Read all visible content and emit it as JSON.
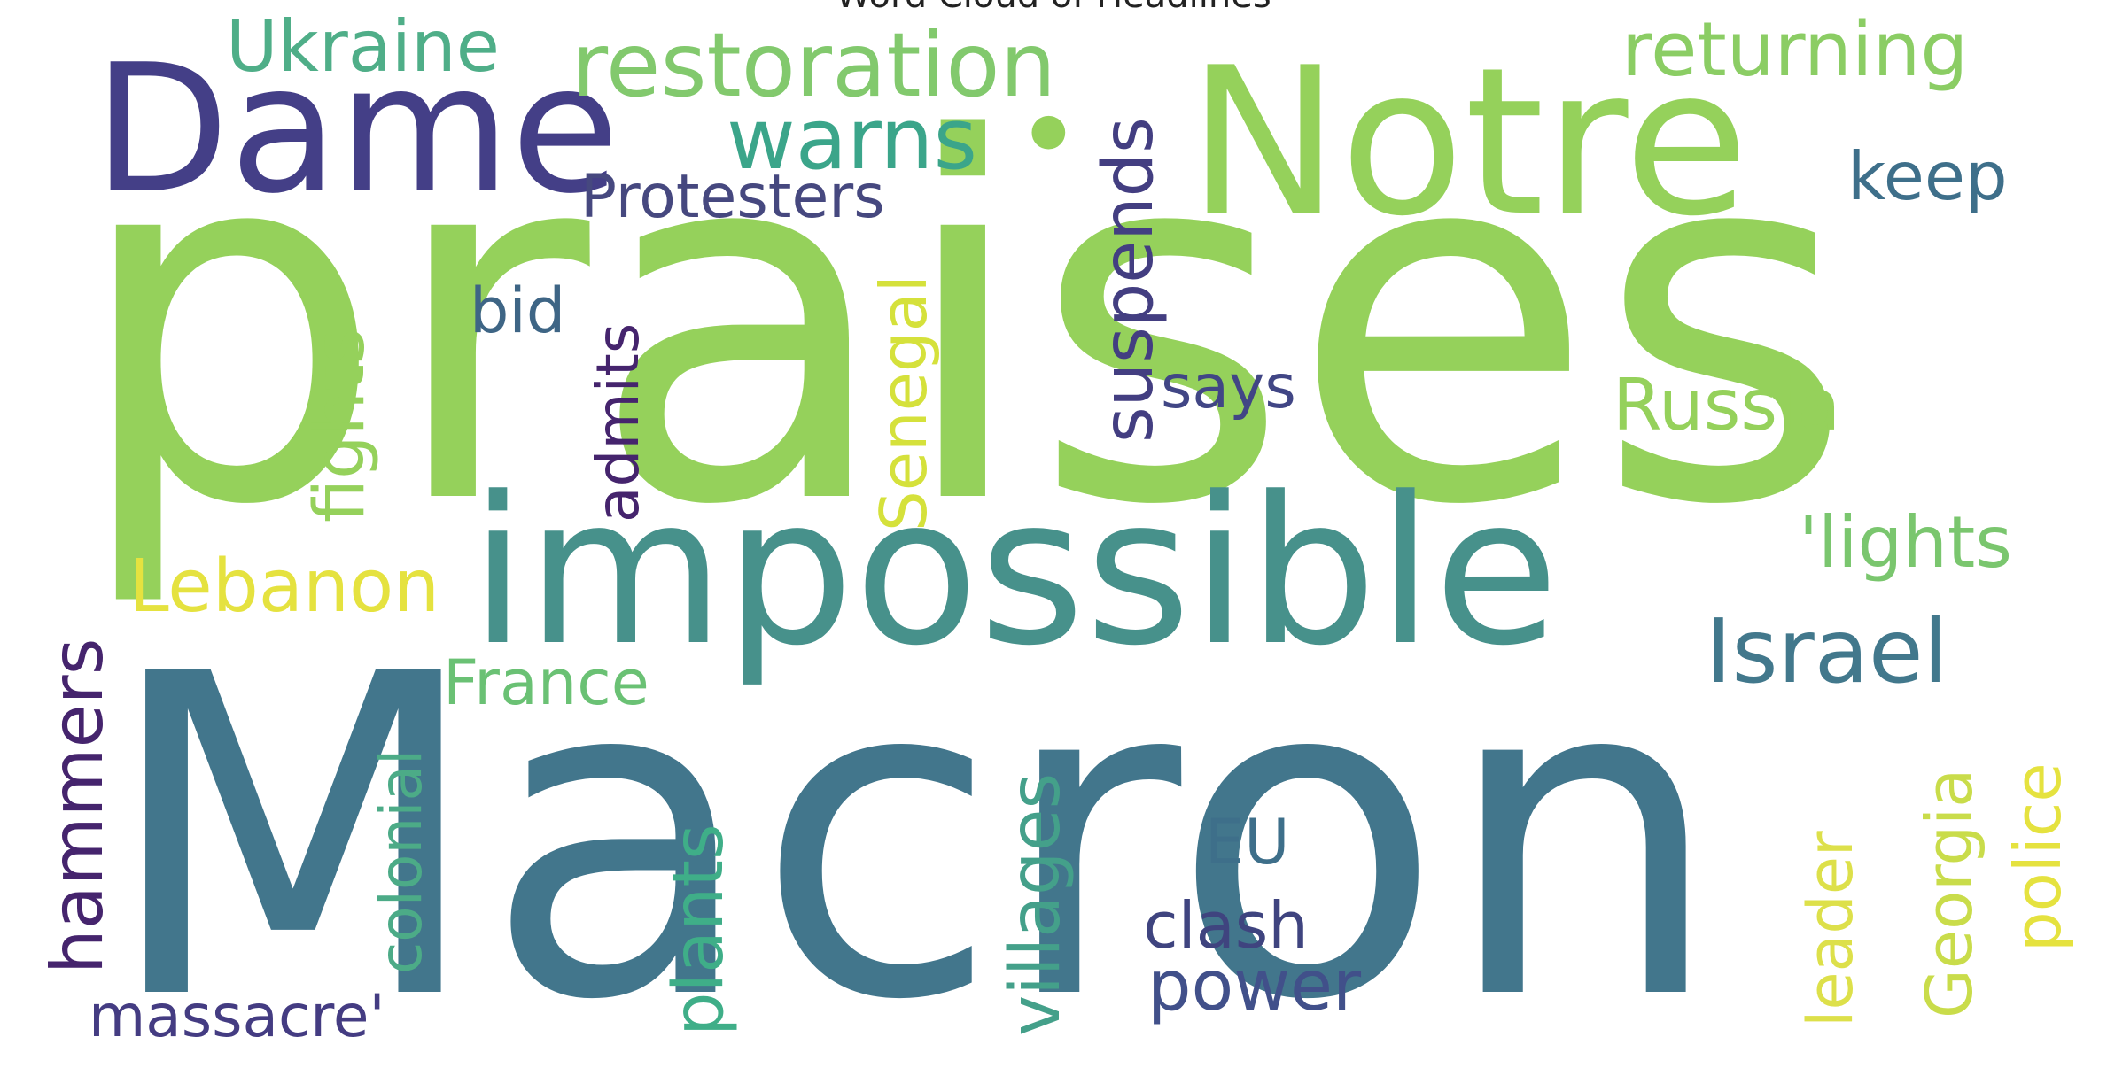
{
  "title": "Word Cloud of Headlines",
  "words": [
    {
      "text": "praises",
      "color": "#95d15b"
    },
    {
      "text": "Macron",
      "color": "#42768c"
    },
    {
      "text": "Notre",
      "color": "#95d15b"
    },
    {
      "text": "Dame",
      "color": "#443f87"
    },
    {
      "text": "impossible",
      "color": "#47918b"
    },
    {
      "text": "restoration",
      "color": "#82c96d"
    },
    {
      "text": "Ukraine",
      "color": "#4fae88"
    },
    {
      "text": "returning",
      "color": "#8bcd64"
    },
    {
      "text": "warns",
      "color": "#3ba58a"
    },
    {
      "text": "•",
      "color": "#95d15b"
    },
    {
      "text": "Protesters",
      "color": "#46487f"
    },
    {
      "text": "keep",
      "color": "#3e6f8a"
    },
    {
      "text": "bid",
      "color": "#3e6585"
    },
    {
      "text": "suspends",
      "color": "#433e81"
    },
    {
      "text": "says",
      "color": "#414685"
    },
    {
      "text": "Russia",
      "color": "#95d15b"
    },
    {
      "text": "fights",
      "color": "#95d15b"
    },
    {
      "text": "admits",
      "color": "#45246d"
    },
    {
      "text": "Senegal",
      "color": "#d5e13b"
    },
    {
      "text": "'lights",
      "color": "#7ac66e"
    },
    {
      "text": "Lebanon",
      "color": "#e5e23f"
    },
    {
      "text": "Israel",
      "color": "#42788c"
    },
    {
      "text": "France",
      "color": "#6ac174"
    },
    {
      "text": "hammers",
      "color": "#45246d"
    },
    {
      "text": "colonial",
      "color": "#4cab87"
    },
    {
      "text": "plants",
      "color": "#3fae88"
    },
    {
      "text": "villages",
      "color": "#44a08a"
    },
    {
      "text": "EU",
      "color": "#3e6f8a"
    },
    {
      "text": "clash",
      "color": "#3f447f"
    },
    {
      "text": "power",
      "color": "#41508a"
    },
    {
      "text": "leader",
      "color": "#dde04a"
    },
    {
      "text": "Georgia",
      "color": "#c9dc4a"
    },
    {
      "text": "police",
      "color": "#e5e23f"
    },
    {
      "text": "massacre'",
      "color": "#443c82"
    }
  ]
}
